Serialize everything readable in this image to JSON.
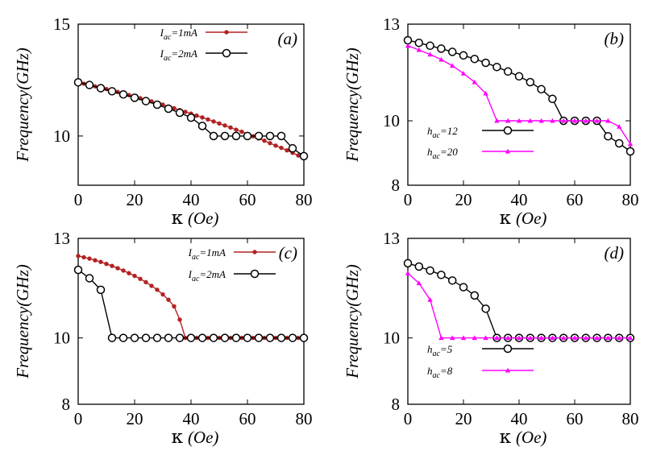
{
  "chart_data": [
    {
      "type": "line",
      "panel_label": "(a)",
      "xlabel_symbol": "κ",
      "xlabel_unit": "(Oe)",
      "ylabel": "Frequency(GHz)",
      "xlim": [
        0,
        80
      ],
      "ylim": [
        7.8,
        15
      ],
      "xticks": [
        "0",
        "20",
        "40",
        "60",
        "80"
      ],
      "yticks": [
        "10",
        "15"
      ],
      "ytick_values": [
        10,
        15
      ],
      "series": [
        {
          "label_main": "I",
          "label_sub": "ac",
          "label_rest": "=1mA",
          "color": "#b22222",
          "marker": "dot",
          "x": [
            0,
            2,
            4,
            6,
            8,
            10,
            12,
            14,
            16,
            18,
            20,
            22,
            24,
            26,
            28,
            30,
            32,
            34,
            36,
            38,
            40,
            42,
            44,
            46,
            48,
            50,
            52,
            54,
            56,
            58,
            60,
            62,
            64,
            66,
            68,
            70,
            72,
            74,
            76,
            78,
            80
          ],
          "y": [
            12.4,
            12.34,
            12.28,
            12.22,
            12.16,
            12.1,
            12.03,
            11.97,
            11.9,
            11.83,
            11.76,
            11.69,
            11.62,
            11.55,
            11.47,
            11.4,
            11.32,
            11.24,
            11.16,
            11.08,
            11.0,
            10.91,
            10.83,
            10.74,
            10.65,
            10.56,
            10.47,
            10.38,
            10.28,
            10.19,
            10.09,
            9.99,
            9.89,
            9.79,
            9.68,
            9.57,
            9.47,
            9.36,
            9.25,
            9.13,
            9.02
          ]
        },
        {
          "label_main": "I",
          "label_sub": "ac",
          "label_rest": "=2mA",
          "color": "#000000",
          "marker": "circle",
          "x": [
            0,
            4,
            8,
            12,
            16,
            20,
            24,
            28,
            32,
            36,
            40,
            44,
            48,
            52,
            56,
            60,
            64,
            68,
            72,
            76,
            80
          ],
          "y": [
            12.4,
            12.28,
            12.14,
            12.0,
            11.86,
            11.71,
            11.56,
            11.4,
            11.22,
            11.04,
            10.82,
            10.45,
            10.0,
            10.0,
            10.0,
            10.0,
            10.0,
            10.0,
            10.0,
            9.45,
            9.1
          ]
        }
      ]
    },
    {
      "type": "line",
      "panel_label": "(b)",
      "xlabel_symbol": "κ",
      "xlabel_unit": "(Oe)",
      "ylabel": "Frequency(GHz)",
      "xlim": [
        0,
        80
      ],
      "ylim": [
        8,
        13
      ],
      "xticks": [
        "0",
        "20",
        "40",
        "60",
        "80"
      ],
      "yticks": [
        "8",
        "10",
        "13"
      ],
      "ytick_values": [
        8,
        10,
        13
      ],
      "series": [
        {
          "label_main": "h",
          "label_sub": "ac",
          "label_rest": "=12",
          "color": "#000000",
          "marker": "circle",
          "x": [
            0,
            4,
            8,
            12,
            16,
            20,
            24,
            28,
            32,
            36,
            40,
            44,
            48,
            52,
            56,
            60,
            64,
            68,
            72,
            76,
            80
          ],
          "y": [
            12.5,
            12.42,
            12.33,
            12.24,
            12.14,
            12.03,
            11.92,
            11.8,
            11.67,
            11.53,
            11.38,
            11.2,
            10.98,
            10.68,
            10.0,
            10.0,
            10.0,
            10.0,
            9.52,
            9.3,
            9.05
          ]
        },
        {
          "label_main": "h",
          "label_sub": "ac",
          "label_rest": "=20",
          "color": "#ff00ff",
          "marker": "triangle",
          "x": [
            0,
            4,
            8,
            12,
            16,
            20,
            24,
            28,
            32,
            36,
            40,
            44,
            48,
            52,
            56,
            60,
            64,
            68,
            72,
            76,
            80
          ],
          "y": [
            12.33,
            12.2,
            12.06,
            11.9,
            11.71,
            11.47,
            11.2,
            10.85,
            10.0,
            10.0,
            10.0,
            10.0,
            10.0,
            10.0,
            10.0,
            10.0,
            10.0,
            10.0,
            10.0,
            9.82,
            9.28
          ]
        }
      ]
    },
    {
      "type": "line",
      "panel_label": "(c)",
      "xlabel_symbol": "κ",
      "xlabel_unit": "(Oe)",
      "ylabel": "Frequency(GHz)",
      "xlim": [
        0,
        80
      ],
      "ylim": [
        8,
        13
      ],
      "xticks": [
        "0",
        "20",
        "40",
        "60",
        "80"
      ],
      "yticks": [
        "8",
        "10",
        "13"
      ],
      "ytick_values": [
        8,
        10,
        13
      ],
      "series": [
        {
          "label_main": "I",
          "label_sub": "ac",
          "label_rest": "=1mA",
          "color": "#b22222",
          "marker": "dot",
          "x": [
            0,
            2,
            4,
            6,
            8,
            10,
            12,
            14,
            16,
            18,
            20,
            22,
            24,
            26,
            28,
            30,
            32,
            34,
            36,
            38,
            40,
            42,
            44,
            46,
            48,
            50,
            52,
            54,
            56,
            58,
            60,
            62,
            64,
            66,
            68,
            70,
            72,
            74,
            76,
            78,
            80
          ],
          "y": [
            12.47,
            12.43,
            12.39,
            12.34,
            12.29,
            12.23,
            12.17,
            12.1,
            12.03,
            11.95,
            11.87,
            11.78,
            11.68,
            11.57,
            11.45,
            11.31,
            11.15,
            10.95,
            10.55,
            10.0,
            10.0,
            10.0,
            10.0,
            10.0,
            10.0,
            10.0,
            10.0,
            10.0,
            10.0,
            10.0,
            10.0,
            10.0,
            10.0,
            10.0,
            10.0,
            10.0,
            10.0,
            10.0,
            10.0,
            10.0,
            10.0
          ]
        },
        {
          "label_main": "I",
          "label_sub": "ac",
          "label_rest": "=2mA",
          "color": "#000000",
          "marker": "circle",
          "x": [
            0,
            4,
            8,
            12,
            16,
            20,
            24,
            28,
            32,
            36,
            40,
            44,
            48,
            52,
            56,
            60,
            64,
            68,
            72,
            76,
            80
          ],
          "y": [
            12.05,
            11.8,
            11.45,
            10.0,
            10.0,
            10.0,
            10.0,
            10.0,
            10.0,
            10.0,
            10.0,
            10.0,
            10.0,
            10.0,
            10.0,
            10.0,
            10.0,
            10.0,
            10.0,
            10.0,
            10.0
          ]
        }
      ]
    },
    {
      "type": "line",
      "panel_label": "(d)",
      "xlabel_symbol": "κ",
      "xlabel_unit": "(Oe)",
      "ylabel": "Frequency(GHz)",
      "xlim": [
        0,
        80
      ],
      "ylim": [
        8,
        13
      ],
      "xticks": [
        "0",
        "20",
        "40",
        "60",
        "80"
      ],
      "yticks": [
        "8",
        "10",
        "13"
      ],
      "ytick_values": [
        8,
        10,
        13
      ],
      "series": [
        {
          "label_main": "h",
          "label_sub": "ac",
          "label_rest": "=5",
          "color": "#000000",
          "marker": "circle",
          "x": [
            0,
            4,
            8,
            12,
            16,
            20,
            24,
            28,
            32,
            36,
            40,
            44,
            48,
            52,
            56,
            60,
            64,
            68,
            72,
            76,
            80
          ],
          "y": [
            12.25,
            12.15,
            12.03,
            11.9,
            11.73,
            11.53,
            11.28,
            10.88,
            10.0,
            10.0,
            10.0,
            10.0,
            10.0,
            10.0,
            10.0,
            10.0,
            10.0,
            10.0,
            10.0,
            10.0,
            10.0
          ]
        },
        {
          "label_main": "h",
          "label_sub": "ac",
          "label_rest": "=8",
          "color": "#ff00ff",
          "marker": "triangle",
          "x": [
            0,
            4,
            8,
            12,
            16,
            20,
            24,
            28,
            32,
            36,
            40,
            44,
            48,
            52,
            56,
            60,
            64,
            68,
            72,
            76,
            80
          ],
          "y": [
            11.95,
            11.65,
            11.15,
            10.0,
            10.0,
            10.0,
            10.0,
            10.0,
            10.0,
            10.0,
            10.0,
            10.0,
            10.0,
            10.0,
            10.0,
            10.0,
            10.0,
            10.0,
            10.0,
            10.0,
            10.0
          ]
        }
      ]
    }
  ]
}
